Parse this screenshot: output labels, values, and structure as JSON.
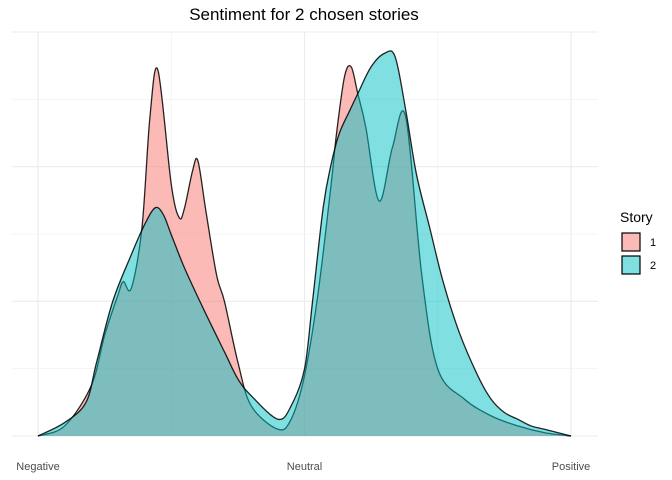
{
  "chart_data": {
    "type": "area",
    "title": "Sentiment for 2 chosen stories",
    "xlabel": "",
    "ylabel": "",
    "x_ticks": [
      "Negative",
      "Neutral",
      "Positive"
    ],
    "xlim": [
      -1,
      1
    ],
    "ylim": [
      0,
      1.15
    ],
    "grid": true,
    "legend": {
      "title": "Story",
      "position": "right"
    },
    "series": [
      {
        "name": "1",
        "color": "#F8766D",
        "x": [
          -1.0,
          -0.9,
          -0.8,
          -0.75,
          -0.7,
          -0.68,
          -0.65,
          -0.61,
          -0.58,
          -0.55,
          -0.5,
          -0.47,
          -0.45,
          -0.42,
          -0.4,
          -0.37,
          -0.33,
          -0.3,
          -0.25,
          -0.2,
          -0.1,
          -0.05,
          0.0,
          0.05,
          0.1,
          0.12,
          0.15,
          0.175,
          0.2,
          0.23,
          0.28,
          0.33,
          0.38,
          0.44,
          0.5,
          0.6,
          0.7,
          0.8,
          0.9,
          1.0
        ],
        "y": [
          0.0,
          0.03,
          0.15,
          0.3,
          0.42,
          0.46,
          0.44,
          0.62,
          0.95,
          1.09,
          0.75,
          0.65,
          0.68,
          0.79,
          0.82,
          0.67,
          0.48,
          0.4,
          0.22,
          0.09,
          0.02,
          0.05,
          0.18,
          0.42,
          0.75,
          0.9,
          1.07,
          1.1,
          1.02,
          0.92,
          0.7,
          0.86,
          0.95,
          0.48,
          0.2,
          0.11,
          0.06,
          0.03,
          0.01,
          0.0
        ]
      },
      {
        "name": "2",
        "color": "#00BFC4",
        "x": [
          -1.0,
          -0.9,
          -0.82,
          -0.78,
          -0.72,
          -0.65,
          -0.6,
          -0.56,
          -0.53,
          -0.5,
          -0.45,
          -0.38,
          -0.3,
          -0.25,
          -0.2,
          -0.1,
          -0.05,
          0.0,
          0.03,
          0.07,
          0.1,
          0.13,
          0.17,
          0.2,
          0.25,
          0.3,
          0.34,
          0.38,
          0.42,
          0.47,
          0.52,
          0.58,
          0.65,
          0.7,
          0.75,
          0.8,
          0.85,
          0.9,
          1.0
        ],
        "y": [
          0.0,
          0.04,
          0.1,
          0.22,
          0.4,
          0.54,
          0.63,
          0.68,
          0.66,
          0.6,
          0.5,
          0.38,
          0.25,
          0.17,
          0.12,
          0.05,
          0.09,
          0.2,
          0.4,
          0.68,
          0.81,
          0.9,
          0.97,
          1.02,
          1.1,
          1.14,
          1.13,
          0.97,
          0.78,
          0.62,
          0.46,
          0.31,
          0.18,
          0.11,
          0.07,
          0.05,
          0.03,
          0.02,
          0.0
        ]
      }
    ]
  }
}
